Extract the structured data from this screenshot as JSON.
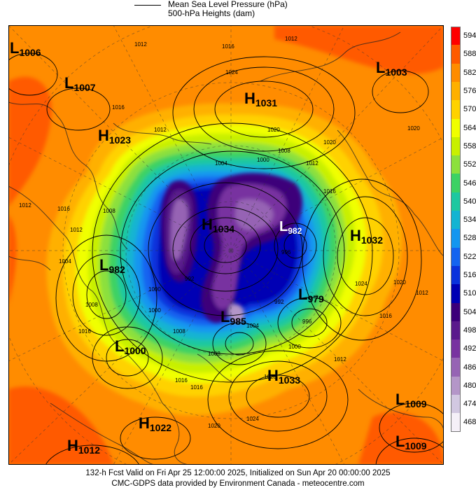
{
  "legend": {
    "line1": "Mean Sea Level Pressure (hPa)",
    "line2": "500-hPa Heights (dam)"
  },
  "colorbar": {
    "levels": [
      "594",
      "588",
      "582",
      "576",
      "570",
      "564",
      "558",
      "552",
      "546",
      "540",
      "534",
      "528",
      "522",
      "516",
      "510",
      "504",
      "498",
      "492",
      "486",
      "480",
      "474",
      "468"
    ],
    "colors": [
      "#ff0000",
      "#ff5a00",
      "#ff8c00",
      "#ffb000",
      "#ffd200",
      "#f0ff00",
      "#c8f000",
      "#8ce03c",
      "#3cd264",
      "#1ec8a0",
      "#14b4d2",
      "#1496f0",
      "#1464f0",
      "#0a32dc",
      "#0000b4",
      "#3c007a",
      "#5a1a8c",
      "#7832a0",
      "#9664b4",
      "#b496c8",
      "#d2c8e1",
      "#f5f0f8"
    ]
  },
  "systems": [
    {
      "type": "L",
      "value": "1006"
    },
    {
      "type": "L",
      "value": "1007"
    },
    {
      "type": "H",
      "value": "1031"
    },
    {
      "type": "L",
      "value": "1003"
    },
    {
      "type": "H",
      "value": "1023"
    },
    {
      "type": "H",
      "value": "1034"
    },
    {
      "type": "L",
      "value": "982"
    },
    {
      "type": "H",
      "value": "1032"
    },
    {
      "type": "L",
      "value": "979"
    },
    {
      "type": "L",
      "value": "985"
    },
    {
      "type": "L",
      "value": "1000"
    },
    {
      "type": "H",
      "value": "1033"
    },
    {
      "type": "L",
      "value": "1009"
    },
    {
      "type": "H",
      "value": "1022"
    },
    {
      "type": "H",
      "value": "1012"
    },
    {
      "type": "L",
      "value": "1009"
    },
    {
      "type": "L",
      "value": "982"
    }
  ],
  "isobar_labels": [
    "1012",
    "1016",
    "1012",
    "1016",
    "1024",
    "1020",
    "1020",
    "1012",
    "1008",
    "1004",
    "1000",
    "1012",
    "996",
    "1016",
    "1012",
    "1012",
    "1016",
    "1008",
    "1004",
    "1000",
    "992",
    "1000",
    "1008",
    "1016",
    "1024",
    "1028",
    "1020",
    "1024",
    "1012",
    "1016",
    "1000",
    "1004",
    "996",
    "992",
    "1008",
    "1016",
    "1020",
    "1012",
    "1008",
    "1016",
    "1020"
  ],
  "footer": {
    "line1": "132-h Fcst Valid on Fri Apr 25 12:00:00 2025, Initialized on Sun Apr 20 00:00:00 2025",
    "line2": "CMC-GDPS data provided by Environment Canada - meteocentre.com"
  }
}
